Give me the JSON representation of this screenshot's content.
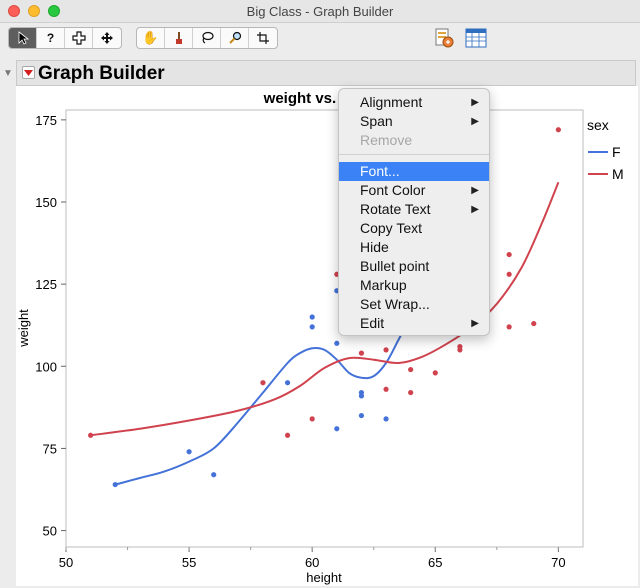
{
  "window": {
    "title": "Big Class - Graph Builder"
  },
  "toolbar": {
    "tools": [
      {
        "name": "arrow-tool",
        "glyph": "➤"
      },
      {
        "name": "help-tool",
        "glyph": "?"
      },
      {
        "name": "selection-tool",
        "glyph": "✛"
      },
      {
        "name": "move-tool",
        "glyph": "✥"
      },
      {
        "name": "grabber-tool",
        "glyph": "✋"
      },
      {
        "name": "brush-tool",
        "glyph": "🖌"
      },
      {
        "name": "lasso-tool",
        "glyph": "◌"
      },
      {
        "name": "magnifier-tool",
        "glyph": "⚲"
      },
      {
        "name": "crosshair-tool",
        "glyph": "✚"
      }
    ]
  },
  "panel": {
    "title": "Graph Builder"
  },
  "chart_data": {
    "type": "scatter",
    "title": "weight vs. height",
    "xlabel": "height",
    "ylabel": "weight",
    "xlim": [
      50,
      71
    ],
    "ylim": [
      45,
      178
    ],
    "xticks": [
      "50",
      "55",
      "60",
      "65",
      "70"
    ],
    "yticks": [
      "50",
      "75",
      "100",
      "125",
      "150",
      "175"
    ],
    "legend_title": "sex",
    "colors": {
      "F": "#4472d8",
      "M": "#d0434e"
    },
    "series": [
      {
        "name": "F",
        "color": "#4472d8",
        "points": [
          [
            52,
            64
          ],
          [
            55,
            74
          ],
          [
            56,
            67
          ],
          [
            59,
            95
          ],
          [
            60,
            112
          ],
          [
            60,
            115
          ],
          [
            61,
            81
          ],
          [
            61,
            107
          ],
          [
            61,
            123
          ],
          [
            62,
            85
          ],
          [
            62,
            91
          ],
          [
            62,
            92
          ],
          [
            63,
            84
          ],
          [
            63,
            112
          ],
          [
            64,
            117
          ]
        ],
        "smooth": [
          [
            52,
            64
          ],
          [
            53,
            66
          ],
          [
            54,
            68
          ],
          [
            55,
            71
          ],
          [
            56,
            75
          ],
          [
            57,
            83
          ],
          [
            58,
            92
          ],
          [
            59,
            101
          ],
          [
            59.5,
            104
          ],
          [
            60,
            105.5
          ],
          [
            60.5,
            105
          ],
          [
            61,
            102
          ],
          [
            61.5,
            98
          ],
          [
            62,
            96.5
          ],
          [
            62.5,
            97
          ],
          [
            63,
            101
          ],
          [
            63.5,
            108
          ],
          [
            64,
            115
          ]
        ]
      },
      {
        "name": "M",
        "color": "#d0434e",
        "points": [
          [
            51,
            79
          ],
          [
            58,
            95
          ],
          [
            59,
            79
          ],
          [
            60,
            84
          ],
          [
            61,
            128
          ],
          [
            62,
            104
          ],
          [
            63,
            93
          ],
          [
            63,
            105
          ],
          [
            64,
            92
          ],
          [
            64,
            99
          ],
          [
            65,
            98
          ],
          [
            66,
            105
          ],
          [
            66,
            106
          ],
          [
            67,
            128
          ],
          [
            68,
            112
          ],
          [
            68,
            128
          ],
          [
            68,
            134
          ],
          [
            69,
            113
          ],
          [
            70,
            172
          ]
        ],
        "smooth": [
          [
            51,
            79
          ],
          [
            53,
            81
          ],
          [
            55,
            83.5
          ],
          [
            57,
            86.5
          ],
          [
            58.5,
            90
          ],
          [
            59.5,
            94
          ],
          [
            60.5,
            99.5
          ],
          [
            61.5,
            102.5
          ],
          [
            62.5,
            102
          ],
          [
            63.5,
            101
          ],
          [
            64.5,
            103
          ],
          [
            65.5,
            107
          ],
          [
            66.5,
            112
          ],
          [
            67.5,
            119
          ],
          [
            68.5,
            130
          ],
          [
            69.3,
            143
          ],
          [
            70,
            156
          ]
        ]
      }
    ]
  },
  "context_menu": {
    "items": [
      {
        "label": "Alignment",
        "submenu": true,
        "state": "normal"
      },
      {
        "label": "Span",
        "submenu": true,
        "state": "normal"
      },
      {
        "label": "Remove",
        "submenu": false,
        "state": "disabled"
      },
      {
        "label": "Font...",
        "submenu": false,
        "state": "selected"
      },
      {
        "label": "Font Color",
        "submenu": true,
        "state": "normal"
      },
      {
        "label": "Rotate Text",
        "submenu": true,
        "state": "normal"
      },
      {
        "label": "Copy Text",
        "submenu": false,
        "state": "normal"
      },
      {
        "label": "Hide",
        "submenu": false,
        "state": "normal"
      },
      {
        "label": "Bullet point",
        "submenu": false,
        "state": "normal"
      },
      {
        "label": "Markup",
        "submenu": false,
        "state": "normal"
      },
      {
        "label": "Set Wrap...",
        "submenu": false,
        "state": "normal"
      },
      {
        "label": "Edit",
        "submenu": true,
        "state": "normal"
      }
    ]
  }
}
